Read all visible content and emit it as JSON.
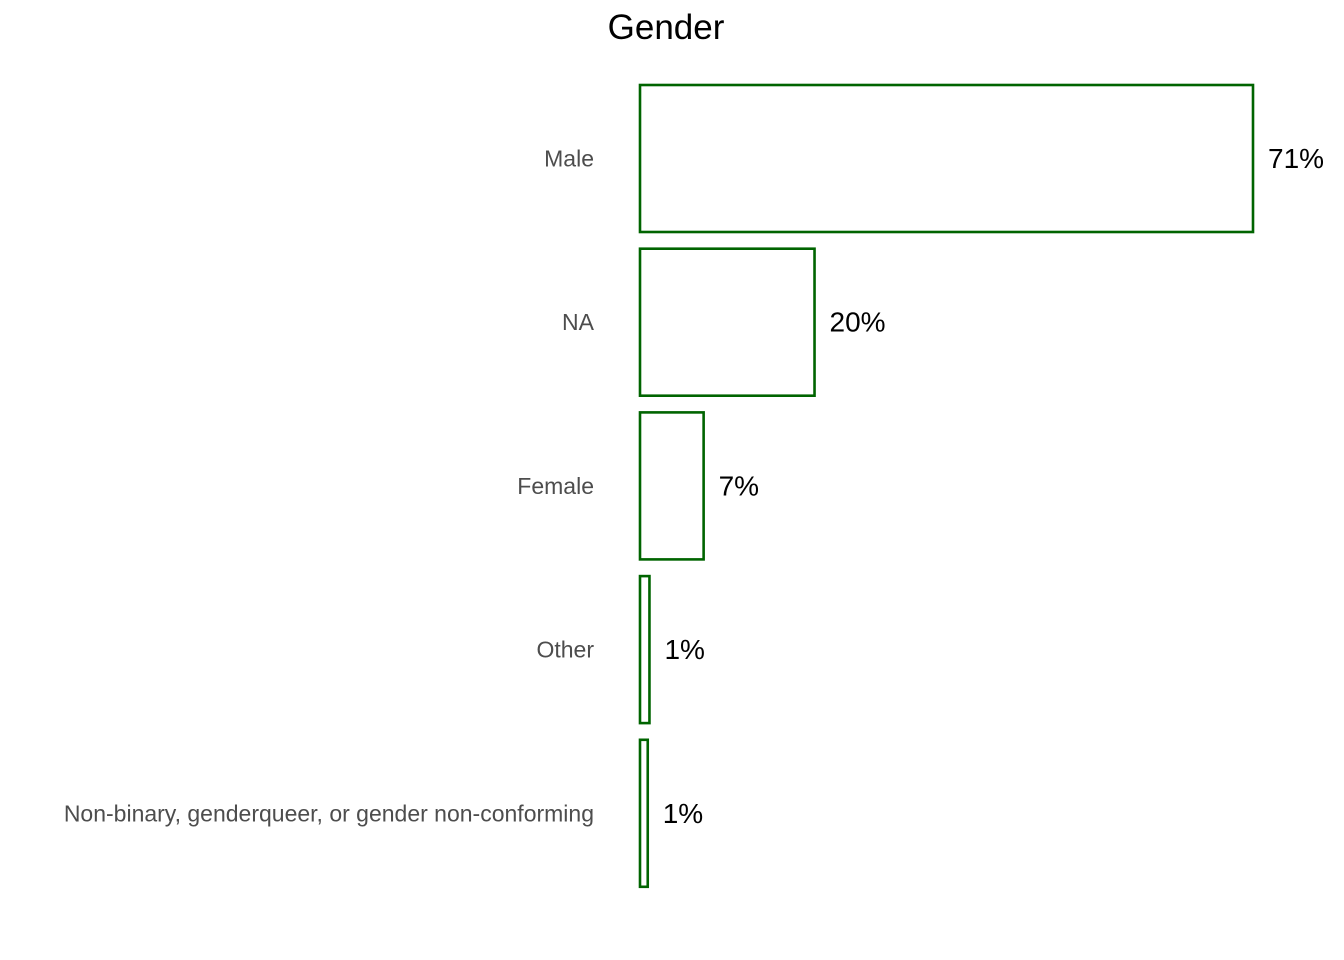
{
  "chart_data": {
    "type": "bar",
    "orientation": "horizontal",
    "title": "Gender",
    "xlabel": "",
    "ylabel": "",
    "categories": [
      "Male",
      "NA",
      "Female",
      "Other",
      "Non-binary, genderqueer, or gender non-conforming"
    ],
    "values": [
      71.3,
      20.3,
      7.4,
      1.1,
      0.9
    ],
    "value_labels": [
      "71%",
      "20%",
      "7%",
      "1%",
      "1%"
    ],
    "xlim": [
      0,
      71.3
    ],
    "grid": false,
    "legend": "none"
  },
  "colors": {
    "bar_outline": "#006400",
    "bar_fill": "#ffffff",
    "category_text": "#4d4d4d",
    "value_text": "#000000"
  }
}
